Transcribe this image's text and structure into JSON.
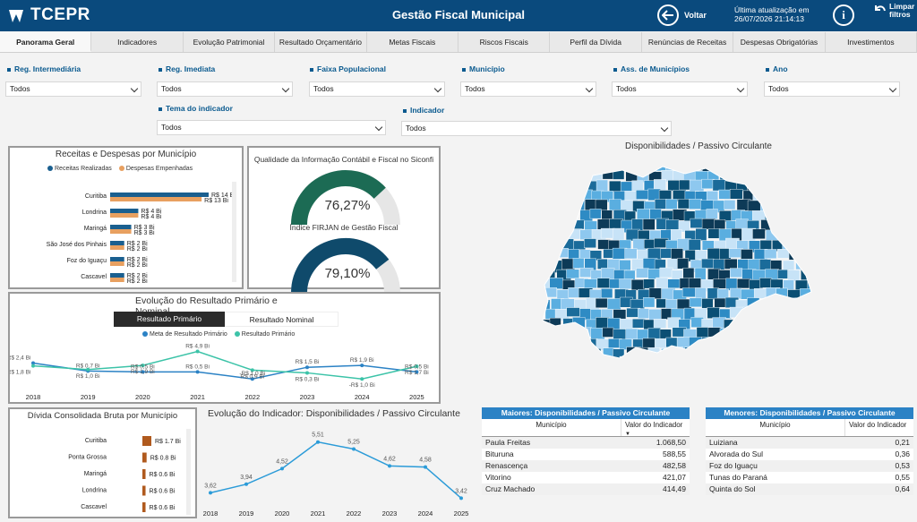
{
  "header": {
    "logo": "TCEPR",
    "title": "Gestão Fiscal Municipal",
    "back_label": "Voltar",
    "updated_label": "Última atualização em",
    "updated_value": "26/07/2026 21:14:13",
    "clear_label_1": "Limpar",
    "clear_label_2": "filtros"
  },
  "tabs": [
    "Panorama Geral",
    "Indicadores",
    "Evolução Patrimonial",
    "Resultado Orçamentário",
    "Metas Fiscais",
    "Riscos Fiscais",
    "Perfil da Dívida",
    "Renúncias de Receitas",
    "Despesas Obrigatórias",
    "Investimentos"
  ],
  "filters": {
    "reg_intermediaria": {
      "label": "Reg. Intermediária",
      "value": "Todos"
    },
    "reg_imediata": {
      "label": "Reg. Imediata",
      "value": "Todos"
    },
    "faixa": {
      "label": "Faixa Populacional",
      "value": "Todos"
    },
    "municipio": {
      "label": "Município",
      "value": "Todos"
    },
    "ass": {
      "label": "Ass. de Municípios",
      "value": "Todos"
    },
    "ano": {
      "label": "Ano",
      "value": "Todos"
    },
    "tema": {
      "label": "Tema do indicador",
      "value": "Todos"
    },
    "indicador": {
      "label": "Indicador",
      "value": "Todos"
    }
  },
  "receitas": {
    "title": "Receitas e Despesas por Município",
    "legend_1": "Receitas Realizadas",
    "legend_2": "Despesas Empenhadas",
    "rows": [
      {
        "city": "Curitiba",
        "r": 14,
        "d": 13,
        "rl": "R$ 14 Bi",
        "dl": "R$ 13 Bi"
      },
      {
        "city": "Londrina",
        "r": 4,
        "d": 4,
        "rl": "R$ 4 Bi",
        "dl": "R$ 4 Bi"
      },
      {
        "city": "Maringá",
        "r": 3,
        "d": 3,
        "rl": "R$ 3 Bi",
        "dl": "R$ 3 Bi"
      },
      {
        "city": "São José dos Pinhais",
        "r": 2,
        "d": 2,
        "rl": "R$ 2 Bi",
        "dl": "R$ 2 Bi"
      },
      {
        "city": "Foz do Iguaçu",
        "r": 2,
        "d": 2,
        "rl": "R$ 2 Bi",
        "dl": "R$ 2 Bi"
      },
      {
        "city": "Cascavel",
        "r": 2,
        "d": 2,
        "rl": "R$ 2 Bi",
        "dl": "R$ 2 Bi"
      }
    ]
  },
  "qualidade": {
    "title": "Qualidade da Informação Contábil e Fiscal no Siconfi",
    "value": 76.27,
    "label": "76,27%",
    "color": "#1c6b54"
  },
  "firjan": {
    "title": "Índice FIRJAN de Gestão Fiscal",
    "value": 79.1,
    "label": "79,10%",
    "color": "#0f4a6b"
  },
  "resultado": {
    "title": "Evolução do Resultado Primário e Nominal",
    "btn_primario": "Resultado Primário",
    "btn_nominal": "Resultado Nominal",
    "legend_1": "Meta de Resultado Primário",
    "legend_2": "Resultado Primário",
    "years": [
      "2018",
      "2019",
      "2020",
      "2021",
      "2022",
      "2023",
      "2024",
      "2025"
    ],
    "meta": [
      2.4,
      0.7,
      0.5,
      0.5,
      -1.0,
      1.5,
      1.9,
      0.5
    ],
    "meta_labels": [
      "R$ 2,4 Bi",
      "R$ 0,7 Bi",
      "R$ 0,5 Bi",
      "R$ 0,5 Bi",
      "-R$ 1,0 Bi",
      "R$ 1,5 Bi",
      "R$ 1,9 Bi",
      "R$ 0,5 Bi"
    ],
    "prim": [
      1.8,
      1.0,
      1.9,
      4.9,
      0.9,
      0.3,
      -1.0,
      1.7
    ],
    "prim_labels": [
      "R$ 1,8 Bi",
      "R$ 1,0 Bi",
      "R$ 1,9 Bi",
      "R$ 4,9 Bi",
      "R$ 0,9 Bi",
      "R$ 0,3 Bi",
      "-R$ 1,0 Bi",
      "R$ 1,7 Bi"
    ]
  },
  "divida": {
    "title": "Dívida Consolidada Bruta por Município",
    "rows": [
      {
        "city": "Curitiba",
        "v": 1.7,
        "l": "R$ 1.7 Bi"
      },
      {
        "city": "Ponta Grossa",
        "v": 0.8,
        "l": "R$ 0.8 Bi"
      },
      {
        "city": "Maringá",
        "v": 0.6,
        "l": "R$ 0.6 Bi"
      },
      {
        "city": "Londrina",
        "v": 0.6,
        "l": "R$ 0.6 Bi"
      },
      {
        "city": "Cascavel",
        "v": 0.6,
        "l": "R$ 0.6 Bi"
      }
    ]
  },
  "chart_data": {
    "type": "line",
    "title": "Evolução do Indicador: Disponibilidades / Passivo Circulante",
    "x": [
      "2018",
      "2019",
      "2020",
      "2021",
      "2022",
      "2023",
      "2024",
      "2025"
    ],
    "values": [
      3.62,
      3.94,
      4.52,
      5.51,
      5.25,
      4.62,
      4.58,
      3.42
    ],
    "labels": [
      "3,62",
      "3,94",
      "4,52",
      "5,51",
      "5,25",
      "4,62",
      "4,58",
      "3,42"
    ]
  },
  "map": {
    "title": "Disponibilidades / Passivo Circulante"
  },
  "maiores": {
    "title": "Maiores: Disponibilidades / Passivo Circulante",
    "col1": "Município",
    "col2": "Valor do Indicador",
    "rows": [
      [
        "Paula Freitas",
        "1.068,50"
      ],
      [
        "Bituruna",
        "588,55"
      ],
      [
        "Renascença",
        "482,58"
      ],
      [
        "Vitorino",
        "421,07"
      ],
      [
        "Cruz Machado",
        "414,49"
      ]
    ]
  },
  "menores": {
    "title": "Menores: Disponibilidades / Passivo Circulante",
    "col1": "Município",
    "col2": "Valor do Indicador",
    "rows": [
      [
        "Luiziana",
        "0,21"
      ],
      [
        "Alvorada do Sul",
        "0,36"
      ],
      [
        "Foz do Iguaçu",
        "0,53"
      ],
      [
        "Tunas do Paraná",
        "0,55"
      ],
      [
        "Quinta do Sol",
        "0,64"
      ]
    ]
  }
}
